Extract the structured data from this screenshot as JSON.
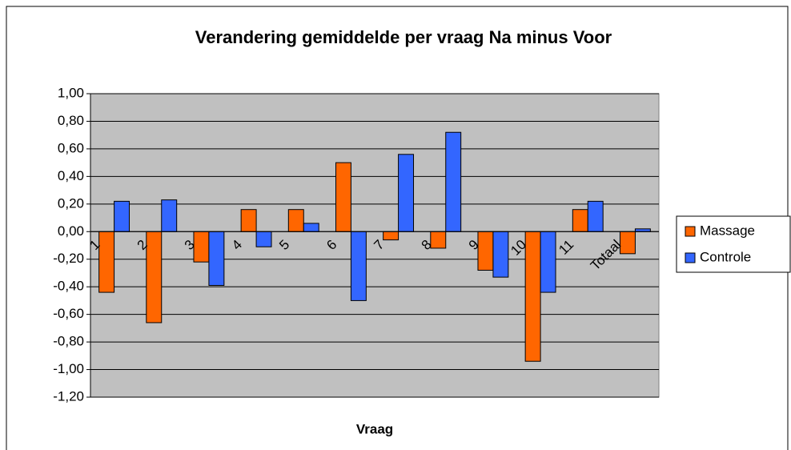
{
  "chart_data": {
    "type": "bar",
    "title": "Verandering gemiddelde per vraag Na minus Voor",
    "x_label": "Vraag",
    "categories": [
      "1",
      "2",
      "3",
      "4",
      "5",
      "6",
      "7",
      "8",
      "9",
      "10",
      "11",
      "Totaal"
    ],
    "series": [
      {
        "name": "Massage",
        "color": "#ff6600",
        "values": [
          -0.44,
          -0.66,
          -0.22,
          0.16,
          0.16,
          0.5,
          -0.06,
          -0.12,
          -0.28,
          -0.94,
          0.16,
          -0.16
        ]
      },
      {
        "name": "Controle",
        "color": "#3366ff",
        "values": [
          0.22,
          0.23,
          -0.39,
          -0.11,
          0.06,
          -0.5,
          0.56,
          0.72,
          -0.33,
          -0.44,
          0.22,
          0.02
        ]
      }
    ],
    "ylim": [
      -1.2,
      1.0
    ],
    "yticks": [
      {
        "value": -1.2,
        "label": "-1,20"
      },
      {
        "value": -1.0,
        "label": "-1,00"
      },
      {
        "value": -0.8,
        "label": "-0,80"
      },
      {
        "value": -0.6,
        "label": "-0,60"
      },
      {
        "value": -0.4,
        "label": "-0,40"
      },
      {
        "value": -0.2,
        "label": "-0,20"
      },
      {
        "value": 0,
        "label": "0,00"
      },
      {
        "value": 0.2,
        "label": "0,20"
      },
      {
        "value": 0.4,
        "label": "0,40"
      },
      {
        "value": 0.6,
        "label": "0,60"
      },
      {
        "value": 0.8,
        "label": "0,80"
      },
      {
        "value": 1.0,
        "label": "1,00"
      }
    ],
    "grid": true,
    "legend": "right",
    "plot_background": "#c0c0c0"
  }
}
